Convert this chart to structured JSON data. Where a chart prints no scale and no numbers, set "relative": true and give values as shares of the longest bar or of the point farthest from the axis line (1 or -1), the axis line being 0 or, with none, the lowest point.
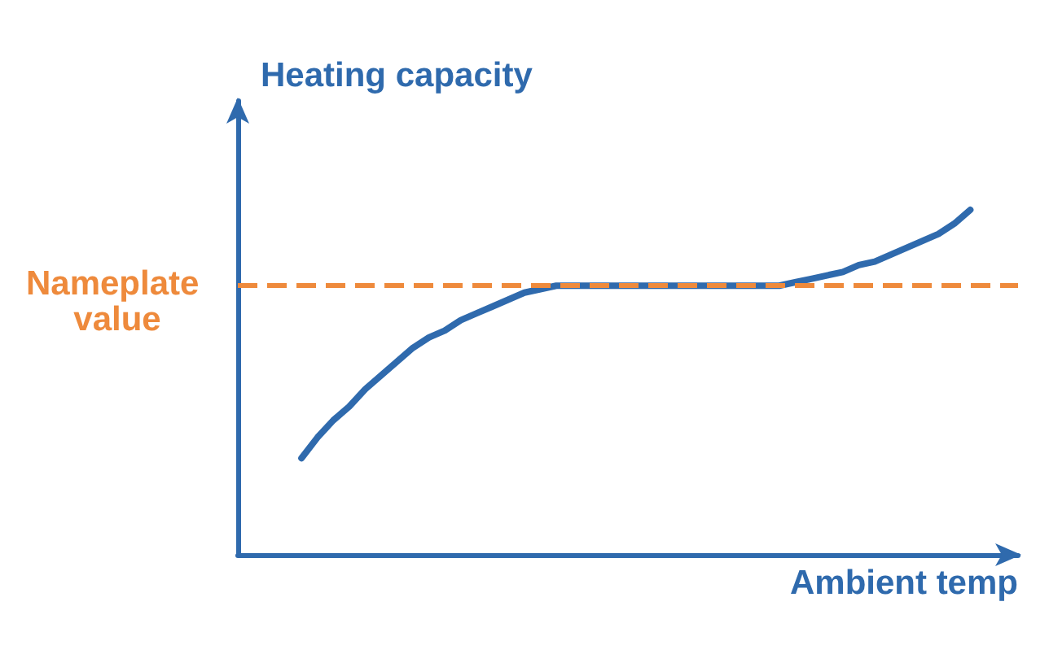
{
  "chart_data": {
    "type": "line",
    "relative": true,
    "xlabel": "Ambient temp",
    "ylabel": "Heating capacity",
    "tick_labels": false,
    "categories": [
      null,
      null,
      null,
      null,
      null,
      null,
      null,
      null,
      null,
      null,
      null,
      null,
      null,
      null,
      null,
      null,
      null,
      null,
      null,
      null,
      null,
      null,
      null,
      null,
      null,
      null,
      null,
      null,
      null,
      null,
      null,
      null,
      null,
      null,
      null,
      null,
      null,
      null,
      null,
      null,
      null,
      null,
      null,
      null,
      null,
      null,
      null,
      null,
      null,
      null
    ],
    "series": [
      {
        "color": "#2f6aad",
        "values": [
          null,
          null,
          null,
          null,
          0.28,
          0.34,
          0.39,
          0.43,
          0.48,
          0.52,
          0.56,
          0.6,
          0.63,
          0.65,
          0.68,
          0.7,
          0.72,
          0.74,
          0.76,
          0.77,
          0.78,
          0.78,
          0.78,
          0.78,
          0.78,
          0.78,
          0.78,
          0.78,
          0.78,
          0.78,
          0.78,
          0.78,
          0.78,
          0.78,
          0.78,
          0.79,
          0.8,
          0.81,
          0.82,
          0.84,
          0.85,
          0.87,
          0.89,
          0.91,
          0.93,
          0.96,
          1,
          null,
          null,
          null
        ]
      }
    ],
    "ref_lines": [
      {
        "axis": "y",
        "value": 0.78,
        "label": "Nameplate value",
        "color": "#ee8a3c",
        "line_style": "dashed"
      }
    ]
  }
}
